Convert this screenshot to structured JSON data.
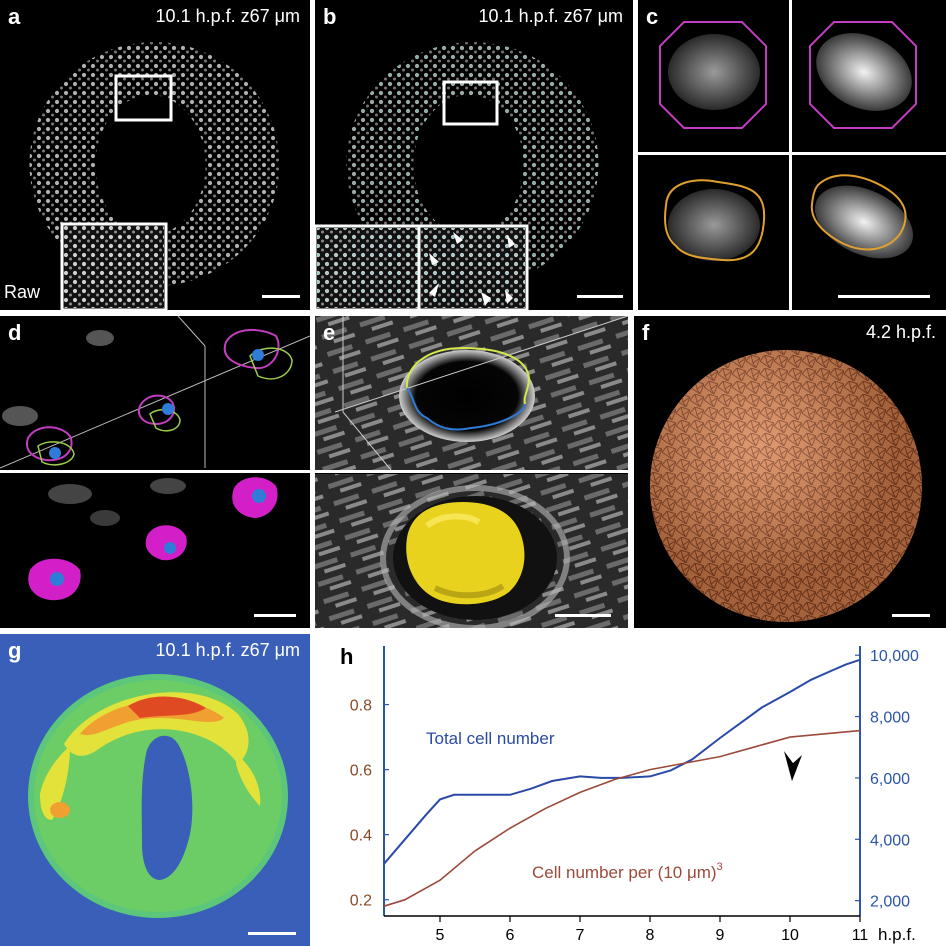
{
  "panels": {
    "a": {
      "label": "a",
      "caption": "10.1 h.p.f. z67 μm",
      "corner_text": "Raw"
    },
    "b": {
      "label": "b",
      "caption": "10.1 h.p.f. z67 μm"
    },
    "c": {
      "label": "c"
    },
    "d": {
      "label": "d"
    },
    "e": {
      "label": "e"
    },
    "f": {
      "label": "f",
      "caption": "4.2 h.p.f."
    },
    "g": {
      "label": "g",
      "caption": "10.1 h.p.f. z67 μm"
    },
    "h": {
      "label": "h"
    }
  },
  "colors": {
    "total_series": "#2a4aa8",
    "density_series": "#9b4a3a",
    "left_axis": "#8a4a26",
    "right_axis": "#2a55a8",
    "tissue": "#d9834f",
    "nucleus_yellow": "#e8d21e",
    "contour_magenta": "#c23dc0",
    "contour_orange": "#e0a030",
    "heatmap_bg": "#3a5fb8"
  },
  "chart_data": {
    "type": "line",
    "title": "",
    "xlabel": "h.p.f.",
    "x_ticks": [
      "5",
      "6",
      "7",
      "8",
      "9",
      "10",
      "11"
    ],
    "xlim": [
      4.2,
      11
    ],
    "left_axis": {
      "ticks": [
        "0.2",
        "0.4",
        "0.6",
        "0.8"
      ],
      "ylim": [
        0.15,
        0.98
      ]
    },
    "right_axis": {
      "ticks": [
        "2,000",
        "4,000",
        "6,000",
        "8,000",
        "10,000"
      ],
      "ylim": [
        1500,
        10300
      ]
    },
    "series": [
      {
        "name": "Total cell number",
        "axis": "right",
        "x": [
          4.2,
          4.5,
          4.8,
          5.0,
          5.2,
          5.5,
          5.8,
          6.0,
          6.3,
          6.6,
          7.0,
          7.3,
          7.6,
          8.0,
          8.3,
          8.6,
          9.0,
          9.3,
          9.6,
          10.0,
          10.3,
          10.6,
          10.8,
          11.0
        ],
        "values": [
          3200,
          4000,
          4800,
          5300,
          5450,
          5450,
          5450,
          5450,
          5650,
          5900,
          6050,
          6000,
          6000,
          6050,
          6250,
          6600,
          7300,
          7800,
          8300,
          8800,
          9200,
          9500,
          9700,
          9850
        ]
      },
      {
        "name": "Cell number per (10 μm)3",
        "axis": "left",
        "x": [
          4.2,
          4.5,
          5.0,
          5.5,
          6.0,
          6.5,
          7.0,
          7.5,
          8.0,
          8.5,
          9.0,
          9.5,
          10.0,
          10.5,
          11.0
        ],
        "values": [
          0.18,
          0.2,
          0.26,
          0.35,
          0.42,
          0.48,
          0.53,
          0.57,
          0.6,
          0.62,
          0.64,
          0.67,
          0.7,
          0.71,
          0.72
        ]
      }
    ],
    "annotations": {
      "total_label": "Total cell number",
      "density_label": "Cell number per (10 μm)",
      "density_exponent": "3",
      "arrow_x": 10.0
    }
  }
}
